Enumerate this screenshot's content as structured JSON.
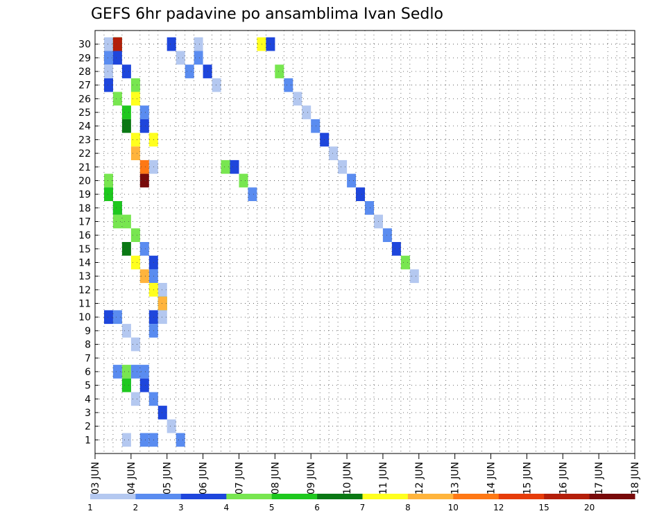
{
  "chart_data": {
    "type": "heatmap",
    "title": "GEFS 6hr padavine po ansamblima Ivan Sedlo",
    "x_tick_labels": [
      "03 JUN",
      "04 JUN",
      "05 JUN",
      "06 JUN",
      "07 JUN",
      "08 JUN",
      "09 JUN",
      "10 JUN",
      "11 JUN",
      "12 JUN",
      "13 JUN",
      "14 JUN",
      "15 JUN",
      "16 JUN",
      "17 JUN",
      "18 JUN"
    ],
    "y_tick_labels": [
      "1",
      "2",
      "3",
      "4",
      "5",
      "6",
      "7",
      "8",
      "9",
      "10",
      "11",
      "12",
      "13",
      "14",
      "15",
      "16",
      "17",
      "18",
      "19",
      "20",
      "21",
      "22",
      "23",
      "24",
      "25",
      "26",
      "27",
      "28",
      "29",
      "30"
    ],
    "xlim": [
      0,
      60
    ],
    "ylim": [
      0,
      31
    ],
    "grid": true,
    "legend_placement": "bottom",
    "color_bins": [
      {
        "label": "1",
        "color": "#b4c8f0"
      },
      {
        "label": "2",
        "color": "#5a8cf0"
      },
      {
        "label": "3",
        "color": "#1e46dc"
      },
      {
        "label": "4",
        "color": "#78e650"
      },
      {
        "label": "5",
        "color": "#1ec81e"
      },
      {
        "label": "6",
        "color": "#0a7814"
      },
      {
        "label": "7",
        "color": "#ffff1e"
      },
      {
        "label": "8",
        "color": "#ffb43c"
      },
      {
        "label": "10",
        "color": "#ff7814"
      },
      {
        "label": "12",
        "color": "#e63c0a"
      },
      {
        "label": "15",
        "color": "#b41e0a"
      },
      {
        "label": "20",
        "color": "#780a0a"
      }
    ],
    "cells": [
      [
        1,
        1,
        30
      ],
      [
        2,
        5,
        30
      ],
      [
        2,
        11,
        30
      ],
      [
        2,
        3,
        29
      ],
      [
        3,
        3,
        28
      ],
      [
        4,
        4,
        27
      ],
      [
        4,
        7,
        26
      ],
      [
        5,
        2,
        25
      ],
      [
        5,
        3,
        24
      ],
      [
        6,
        7,
        23
      ],
      [
        6,
        1,
        21
      ],
      [
        1,
        2,
        29
      ],
      [
        1,
        3,
        27
      ],
      [
        2,
        4,
        26
      ],
      [
        3,
        5,
        25
      ],
      [
        3,
        6,
        24
      ],
      [
        4,
        7,
        23
      ],
      [
        4,
        8,
        22
      ],
      [
        5,
        9,
        21
      ],
      [
        5,
        12,
        20
      ],
      [
        1,
        1,
        28
      ],
      [
        1,
        2,
        19
      ],
      [
        2,
        3,
        18
      ],
      [
        3,
        4,
        17
      ],
      [
        4,
        4,
        16
      ],
      [
        5,
        2,
        15
      ],
      [
        6,
        3,
        14
      ],
      [
        6,
        2,
        13
      ],
      [
        7,
        1,
        12
      ],
      [
        7,
        5,
        11
      ],
      [
        1,
        4,
        20
      ],
      [
        1,
        5,
        19
      ],
      [
        2,
        5,
        18
      ],
      [
        2,
        4,
        17
      ],
      [
        3,
        6,
        15
      ],
      [
        4,
        7,
        14
      ],
      [
        5,
        8,
        13
      ],
      [
        6,
        7,
        12
      ],
      [
        7,
        8,
        11
      ],
      [
        1,
        3,
        10
      ],
      [
        2,
        2,
        10
      ],
      [
        3,
        1,
        9
      ],
      [
        4,
        1,
        8
      ],
      [
        5,
        2,
        6
      ],
      [
        5,
        3,
        5
      ],
      [
        6,
        2,
        4
      ],
      [
        7,
        3,
        3
      ],
      [
        8,
        1,
        2
      ],
      [
        9,
        2,
        1
      ],
      [
        2,
        2,
        6
      ],
      [
        3,
        3,
        5
      ],
      [
        3,
        5,
        5
      ],
      [
        4,
        1,
        4
      ],
      [
        5,
        2,
        1
      ],
      [
        6,
        2,
        1
      ],
      [
        3,
        1,
        1
      ],
      [
        3,
        4,
        6
      ],
      [
        4,
        2,
        6
      ],
      [
        6,
        3,
        10
      ],
      [
        6,
        2,
        9
      ],
      [
        7,
        1,
        10
      ],
      [
        8,
        3,
        30
      ],
      [
        9,
        1,
        29
      ],
      [
        10,
        2,
        28
      ],
      [
        11,
        1,
        30
      ],
      [
        11,
        2,
        29
      ],
      [
        12,
        3,
        28
      ],
      [
        13,
        1,
        27
      ],
      [
        14,
        4,
        21
      ],
      [
        15,
        3,
        21
      ],
      [
        16,
        4,
        20
      ],
      [
        17,
        2,
        19
      ],
      [
        18,
        7,
        30
      ],
      [
        19,
        3,
        30
      ],
      [
        20,
        4,
        28
      ],
      [
        21,
        2,
        27
      ],
      [
        22,
        1,
        26
      ],
      [
        23,
        1,
        25
      ],
      [
        24,
        2,
        24
      ],
      [
        25,
        3,
        23
      ],
      [
        26,
        1,
        22
      ],
      [
        27,
        1,
        21
      ],
      [
        28,
        2,
        20
      ],
      [
        29,
        3,
        19
      ],
      [
        30,
        2,
        18
      ],
      [
        31,
        1,
        17
      ],
      [
        32,
        2,
        16
      ],
      [
        33,
        3,
        15
      ],
      [
        34,
        4,
        14
      ],
      [
        35,
        1,
        13
      ]
    ],
    "value_by_row": {}
  }
}
